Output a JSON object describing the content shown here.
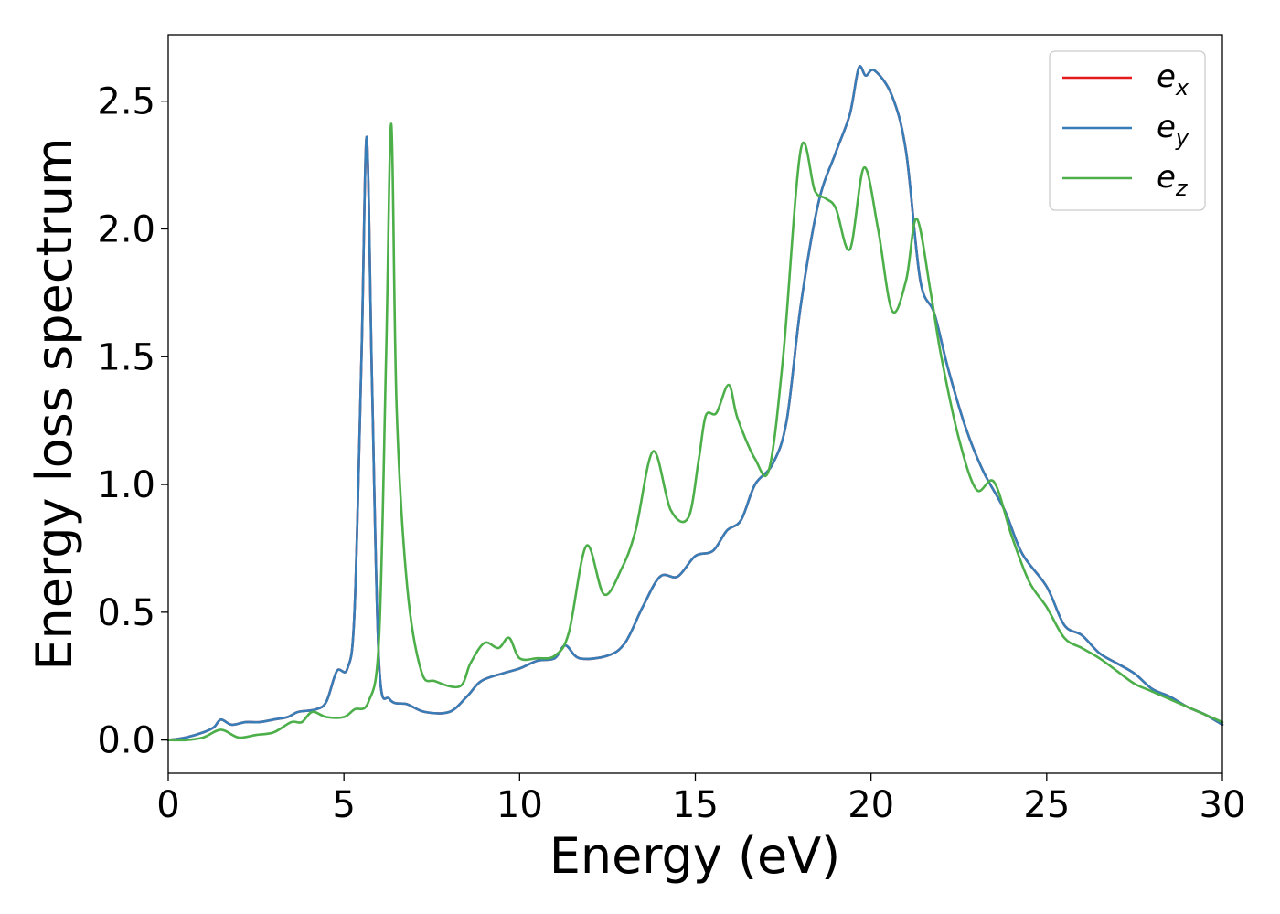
{
  "chart_data": {
    "type": "line",
    "xlabel": "Energy (eV)",
    "ylabel": "Energy loss spectrum",
    "xlim": [
      0,
      30
    ],
    "ylim": [
      -0.13,
      2.76
    ],
    "xticks": [
      0,
      5,
      10,
      15,
      20,
      25,
      30
    ],
    "xtick_labels": [
      "0",
      "5",
      "10",
      "15",
      "20",
      "25",
      "30"
    ],
    "yticks": [
      0.0,
      0.5,
      1.0,
      1.5,
      2.0,
      2.5
    ],
    "ytick_labels": [
      "0.0",
      "0.5",
      "1.0",
      "1.5",
      "2.0",
      "2.5"
    ],
    "grid": false,
    "legend_position": "top-right",
    "series": [
      {
        "name": "e_x",
        "legend_base": "e",
        "legend_sub": "x",
        "color": "#e41a1c",
        "points": [
          [
            0,
            0
          ],
          [
            0.5,
            0.01
          ],
          [
            1,
            0.03
          ],
          [
            1.3,
            0.05
          ],
          [
            1.5,
            0.08
          ],
          [
            1.8,
            0.06
          ],
          [
            2.2,
            0.07
          ],
          [
            2.6,
            0.07
          ],
          [
            3,
            0.08
          ],
          [
            3.4,
            0.09
          ],
          [
            3.7,
            0.11
          ],
          [
            4.2,
            0.12
          ],
          [
            4.5,
            0.15
          ],
          [
            4.8,
            0.27
          ],
          [
            5.1,
            0.28
          ],
          [
            5.3,
            0.5
          ],
          [
            5.5,
            1.5
          ],
          [
            5.65,
            2.36
          ],
          [
            5.8,
            1.4
          ],
          [
            6,
            0.3
          ],
          [
            6.3,
            0.16
          ],
          [
            6.8,
            0.14
          ],
          [
            7.3,
            0.11
          ],
          [
            8,
            0.11
          ],
          [
            8.5,
            0.17
          ],
          [
            8.9,
            0.23
          ],
          [
            9.5,
            0.26
          ],
          [
            10,
            0.28
          ],
          [
            10.5,
            0.31
          ],
          [
            11,
            0.32
          ],
          [
            11.3,
            0.37
          ],
          [
            11.7,
            0.32
          ],
          [
            12.5,
            0.33
          ],
          [
            13,
            0.38
          ],
          [
            13.5,
            0.52
          ],
          [
            14,
            0.64
          ],
          [
            14.5,
            0.64
          ],
          [
            15,
            0.72
          ],
          [
            15.5,
            0.74
          ],
          [
            15.9,
            0.82
          ],
          [
            16.3,
            0.86
          ],
          [
            16.7,
            1.0
          ],
          [
            17.2,
            1.08
          ],
          [
            17.6,
            1.25
          ],
          [
            18,
            1.7
          ],
          [
            18.5,
            2.1
          ],
          [
            19,
            2.3
          ],
          [
            19.4,
            2.45
          ],
          [
            19.65,
            2.63
          ],
          [
            19.85,
            2.6
          ],
          [
            20.1,
            2.62
          ],
          [
            20.6,
            2.52
          ],
          [
            21,
            2.3
          ],
          [
            21.4,
            1.8
          ],
          [
            21.8,
            1.67
          ],
          [
            22.2,
            1.45
          ],
          [
            22.7,
            1.22
          ],
          [
            23.2,
            1.05
          ],
          [
            23.8,
            0.9
          ],
          [
            24.3,
            0.73
          ],
          [
            25,
            0.6
          ],
          [
            25.5,
            0.45
          ],
          [
            26,
            0.41
          ],
          [
            26.5,
            0.34
          ],
          [
            27,
            0.3
          ],
          [
            27.5,
            0.26
          ],
          [
            28,
            0.2
          ],
          [
            28.5,
            0.17
          ],
          [
            29,
            0.13
          ],
          [
            29.5,
            0.1
          ],
          [
            30,
            0.06
          ]
        ]
      },
      {
        "name": "e_y",
        "legend_base": "e",
        "legend_sub": "y",
        "color": "#377eb8",
        "points": [
          [
            0,
            0
          ],
          [
            0.5,
            0.01
          ],
          [
            1,
            0.03
          ],
          [
            1.3,
            0.05
          ],
          [
            1.5,
            0.08
          ],
          [
            1.8,
            0.06
          ],
          [
            2.2,
            0.07
          ],
          [
            2.6,
            0.07
          ],
          [
            3,
            0.08
          ],
          [
            3.4,
            0.09
          ],
          [
            3.7,
            0.11
          ],
          [
            4.2,
            0.12
          ],
          [
            4.5,
            0.15
          ],
          [
            4.8,
            0.27
          ],
          [
            5.1,
            0.28
          ],
          [
            5.3,
            0.5
          ],
          [
            5.5,
            1.5
          ],
          [
            5.65,
            2.36
          ],
          [
            5.8,
            1.4
          ],
          [
            6,
            0.3
          ],
          [
            6.3,
            0.16
          ],
          [
            6.8,
            0.14
          ],
          [
            7.3,
            0.11
          ],
          [
            8,
            0.11
          ],
          [
            8.5,
            0.17
          ],
          [
            8.9,
            0.23
          ],
          [
            9.5,
            0.26
          ],
          [
            10,
            0.28
          ],
          [
            10.5,
            0.31
          ],
          [
            11,
            0.32
          ],
          [
            11.3,
            0.37
          ],
          [
            11.7,
            0.32
          ],
          [
            12.5,
            0.33
          ],
          [
            13,
            0.38
          ],
          [
            13.5,
            0.52
          ],
          [
            14,
            0.64
          ],
          [
            14.5,
            0.64
          ],
          [
            15,
            0.72
          ],
          [
            15.5,
            0.74
          ],
          [
            15.9,
            0.82
          ],
          [
            16.3,
            0.86
          ],
          [
            16.7,
            1.0
          ],
          [
            17.2,
            1.08
          ],
          [
            17.6,
            1.25
          ],
          [
            18,
            1.7
          ],
          [
            18.5,
            2.1
          ],
          [
            19,
            2.3
          ],
          [
            19.4,
            2.45
          ],
          [
            19.65,
            2.63
          ],
          [
            19.85,
            2.6
          ],
          [
            20.1,
            2.62
          ],
          [
            20.6,
            2.52
          ],
          [
            21,
            2.3
          ],
          [
            21.4,
            1.8
          ],
          [
            21.8,
            1.67
          ],
          [
            22.2,
            1.45
          ],
          [
            22.7,
            1.22
          ],
          [
            23.2,
            1.05
          ],
          [
            23.8,
            0.9
          ],
          [
            24.3,
            0.73
          ],
          [
            25,
            0.6
          ],
          [
            25.5,
            0.45
          ],
          [
            26,
            0.41
          ],
          [
            26.5,
            0.34
          ],
          [
            27,
            0.3
          ],
          [
            27.5,
            0.26
          ],
          [
            28,
            0.2
          ],
          [
            28.5,
            0.17
          ],
          [
            29,
            0.13
          ],
          [
            29.5,
            0.1
          ],
          [
            30,
            0.06
          ]
        ]
      },
      {
        "name": "e_z",
        "legend_base": "e",
        "legend_sub": "z",
        "color": "#4daf4a",
        "points": [
          [
            0,
            0
          ],
          [
            0.5,
            0.0
          ],
          [
            1,
            0.01
          ],
          [
            1.5,
            0.04
          ],
          [
            2,
            0.01
          ],
          [
            2.5,
            0.02
          ],
          [
            3,
            0.03
          ],
          [
            3.5,
            0.07
          ],
          [
            3.8,
            0.07
          ],
          [
            4.1,
            0.11
          ],
          [
            4.5,
            0.09
          ],
          [
            5,
            0.09
          ],
          [
            5.3,
            0.12
          ],
          [
            5.7,
            0.15
          ],
          [
            6,
            0.4
          ],
          [
            6.2,
            1.5
          ],
          [
            6.35,
            2.41
          ],
          [
            6.5,
            1.3
          ],
          [
            6.8,
            0.6
          ],
          [
            7.2,
            0.27
          ],
          [
            7.6,
            0.23
          ],
          [
            8.3,
            0.21
          ],
          [
            8.6,
            0.3
          ],
          [
            9,
            0.38
          ],
          [
            9.4,
            0.36
          ],
          [
            9.7,
            0.4
          ],
          [
            10,
            0.32
          ],
          [
            10.5,
            0.32
          ],
          [
            11,
            0.33
          ],
          [
            11.4,
            0.42
          ],
          [
            11.9,
            0.76
          ],
          [
            12.4,
            0.57
          ],
          [
            12.9,
            0.67
          ],
          [
            13.3,
            0.82
          ],
          [
            13.8,
            1.13
          ],
          [
            14.3,
            0.9
          ],
          [
            14.8,
            0.87
          ],
          [
            15.1,
            1.1
          ],
          [
            15.3,
            1.27
          ],
          [
            15.6,
            1.28
          ],
          [
            15.95,
            1.39
          ],
          [
            16.2,
            1.26
          ],
          [
            16.7,
            1.1
          ],
          [
            17.1,
            1.06
          ],
          [
            17.5,
            1.5
          ],
          [
            18,
            2.31
          ],
          [
            18.4,
            2.15
          ],
          [
            18.7,
            2.12
          ],
          [
            19,
            2.08
          ],
          [
            19.4,
            1.92
          ],
          [
            19.8,
            2.24
          ],
          [
            20.2,
            2.0
          ],
          [
            20.6,
            1.68
          ],
          [
            21,
            1.8
          ],
          [
            21.3,
            2.04
          ],
          [
            21.7,
            1.75
          ],
          [
            22,
            1.5
          ],
          [
            22.5,
            1.18
          ],
          [
            23,
            0.98
          ],
          [
            23.5,
            1.01
          ],
          [
            24,
            0.8
          ],
          [
            24.5,
            0.62
          ],
          [
            25,
            0.52
          ],
          [
            25.5,
            0.4
          ],
          [
            26,
            0.36
          ],
          [
            26.5,
            0.32
          ],
          [
            27,
            0.27
          ],
          [
            27.5,
            0.22
          ],
          [
            28,
            0.19
          ],
          [
            29,
            0.13
          ],
          [
            30,
            0.07
          ]
        ]
      }
    ]
  }
}
